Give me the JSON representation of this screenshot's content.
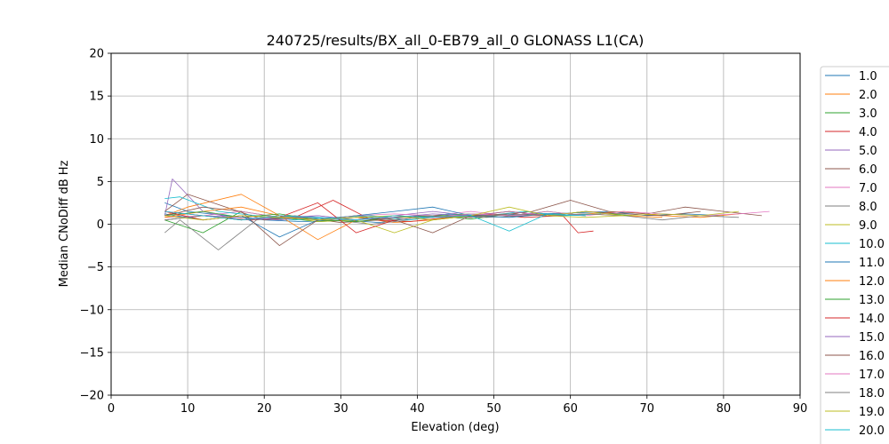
{
  "chart_data": {
    "type": "line",
    "title": "240725/results/BX_all_0-EB79_all_0 GLONASS L1(CA)",
    "xlabel": "Elevation (deg)",
    "ylabel": "Median CNoDiff dB Hz",
    "xlim": [
      0,
      90
    ],
    "ylim": [
      -20,
      20
    ],
    "xticks": [
      0,
      10,
      20,
      30,
      40,
      50,
      60,
      70,
      80,
      90
    ],
    "yticks": [
      -20,
      -15,
      -10,
      -5,
      0,
      5,
      10,
      15,
      20
    ],
    "grid": true,
    "legend_position": "right, outside plot",
    "series": [
      {
        "name": "1.0",
        "color": "#1f77b4",
        "x": [
          7,
          10,
          15,
          20,
          25,
          30,
          35,
          40,
          45,
          50,
          55,
          60,
          65,
          70,
          75,
          80
        ],
        "values": [
          2.5,
          1.5,
          1.0,
          0.5,
          0.3,
          0.5,
          0.2,
          0.8,
          1.0,
          1.0,
          1.2,
          1.3,
          1.5,
          1.0,
          1.2,
          1.0
        ]
      },
      {
        "name": "2.0",
        "color": "#ff7f0e",
        "x": [
          7,
          10,
          17,
          22,
          27,
          32,
          37,
          42,
          47,
          52,
          57,
          62,
          67,
          72,
          77,
          82
        ],
        "values": [
          1.0,
          2.0,
          3.5,
          1.0,
          0.5,
          0.8,
          0.2,
          0.5,
          1.0,
          1.5,
          1.0,
          1.2,
          1.5,
          1.0,
          0.8,
          1.2
        ]
      },
      {
        "name": "3.0",
        "color": "#2ca02c",
        "x": [
          7,
          12,
          17,
          22,
          27,
          32,
          37,
          42,
          47,
          52,
          57,
          62,
          68
        ],
        "values": [
          0.5,
          -1.0,
          1.5,
          0.8,
          0.3,
          0.5,
          0.8,
          1.0,
          0.6,
          1.2,
          1.0,
          1.5,
          1.0
        ]
      },
      {
        "name": "4.0",
        "color": "#d62728",
        "x": [
          7,
          12,
          18,
          24,
          29,
          34,
          39,
          44,
          49,
          54,
          59,
          61,
          63
        ],
        "values": [
          1.5,
          1.0,
          0.5,
          0.8,
          2.8,
          0.5,
          0.3,
          0.8,
          1.2,
          0.8,
          1.0,
          -1.0,
          -0.8
        ]
      },
      {
        "name": "5.0",
        "color": "#9467bd",
        "x": [
          7,
          8,
          12,
          17,
          22,
          27,
          32,
          37,
          42,
          47,
          52,
          57
        ],
        "values": [
          1.0,
          5.3,
          1.5,
          0.5,
          0.8,
          1.0,
          0.5,
          1.0,
          1.5,
          1.0,
          1.2,
          1.0
        ]
      },
      {
        "name": "6.0",
        "color": "#8c564b",
        "x": [
          7,
          10,
          15,
          20,
          25,
          30,
          35,
          40,
          45,
          50,
          55,
          60,
          65,
          70,
          75,
          80,
          85
        ],
        "values": [
          1.5,
          3.5,
          2.0,
          0.5,
          0.8,
          0.2,
          0.5,
          1.0,
          0.8,
          1.0,
          1.5,
          2.8,
          1.5,
          1.2,
          2.0,
          1.5,
          1.0
        ]
      },
      {
        "name": "7.0",
        "color": "#e377c2",
        "x": [
          7,
          12,
          17,
          22,
          27,
          32,
          37,
          42,
          47,
          52,
          57,
          62,
          67,
          72,
          77,
          82,
          86
        ],
        "values": [
          0.8,
          1.0,
          1.5,
          0.8,
          0.5,
          1.0,
          1.2,
          1.0,
          1.5,
          1.0,
          1.2,
          1.0,
          1.5,
          1.2,
          1.0,
          1.2,
          1.5
        ]
      },
      {
        "name": "8.0",
        "color": "#7f7f7f",
        "x": [
          7,
          9,
          14,
          19,
          24,
          29,
          34,
          39,
          44,
          49,
          54,
          59
        ],
        "values": [
          -1.0,
          0.5,
          -3.0,
          0.5,
          1.0,
          0.5,
          0.0,
          0.5,
          1.0,
          0.8,
          1.0,
          1.2
        ]
      },
      {
        "name": "9.0",
        "color": "#bcbd22",
        "x": [
          7,
          12,
          17,
          22,
          27,
          32,
          37,
          42,
          47,
          52,
          57,
          62,
          67
        ],
        "values": [
          0.5,
          1.0,
          0.5,
          1.0,
          0.3,
          0.5,
          -1.0,
          0.5,
          1.0,
          1.2,
          1.0,
          0.8,
          1.0
        ]
      },
      {
        "name": "10.0",
        "color": "#17becf",
        "x": [
          7,
          9,
          14,
          19,
          24,
          29,
          34,
          39,
          44,
          49,
          54,
          59,
          64
        ],
        "values": [
          3.0,
          3.2,
          1.5,
          1.0,
          0.5,
          0.8,
          1.0,
          0.5,
          1.2,
          1.0,
          1.5,
          1.0,
          1.2
        ]
      },
      {
        "name": "11.0",
        "color": "#1f77b4",
        "x": [
          7,
          12,
          17,
          22,
          27,
          32,
          37,
          42,
          47,
          52,
          57,
          62
        ],
        "values": [
          1.2,
          0.5,
          1.0,
          -1.5,
          0.5,
          1.0,
          1.5,
          2.0,
          1.0,
          0.8,
          1.2,
          1.0
        ]
      },
      {
        "name": "12.0",
        "color": "#ff7f0e",
        "x": [
          7,
          12,
          17,
          22,
          27,
          32,
          37,
          42,
          47,
          52,
          57,
          62,
          67,
          72
        ],
        "values": [
          0.8,
          1.5,
          2.0,
          1.0,
          -1.8,
          0.5,
          1.0,
          0.8,
          1.0,
          1.5,
          1.0,
          1.2,
          1.0,
          0.8
        ]
      },
      {
        "name": "13.0",
        "color": "#2ca02c",
        "x": [
          7,
          12,
          17,
          22,
          27,
          32,
          37,
          42,
          47,
          52,
          57,
          62
        ],
        "values": [
          1.0,
          1.5,
          0.8,
          1.2,
          0.5,
          0.3,
          0.8,
          1.0,
          1.2,
          1.0,
          1.5,
          1.0
        ]
      },
      {
        "name": "14.0",
        "color": "#d62728",
        "x": [
          7,
          12,
          17,
          22,
          27,
          32,
          37,
          42,
          47,
          52,
          57
        ],
        "values": [
          1.5,
          0.5,
          1.0,
          0.8,
          2.5,
          -1.0,
          0.5,
          1.0,
          0.8,
          1.2,
          1.0
        ]
      },
      {
        "name": "15.0",
        "color": "#9467bd",
        "x": [
          7,
          12,
          17,
          22,
          27,
          32,
          37,
          42,
          47,
          52,
          57,
          62
        ],
        "values": [
          0.5,
          1.0,
          0.8,
          0.5,
          1.0,
          0.5,
          0.8,
          1.2,
          1.0,
          1.5,
          1.0,
          1.2
        ]
      },
      {
        "name": "16.0",
        "color": "#8c564b",
        "x": [
          7,
          12,
          17,
          22,
          27,
          32,
          37,
          42,
          47,
          52,
          57,
          62,
          67,
          72,
          77
        ],
        "values": [
          1.0,
          2.0,
          1.5,
          -2.5,
          0.5,
          0.8,
          0.5,
          -1.0,
          1.0,
          1.2,
          1.0,
          1.5,
          1.2,
          1.0,
          1.5
        ]
      },
      {
        "name": "17.0",
        "color": "#e377c2",
        "x": [
          7,
          12,
          17,
          22,
          27,
          32,
          37,
          42,
          47,
          52,
          57,
          62
        ],
        "values": [
          1.5,
          1.0,
          0.5,
          1.0,
          0.8,
          0.5,
          1.0,
          0.8,
          1.2,
          1.0,
          1.5,
          1.0
        ]
      },
      {
        "name": "18.0",
        "color": "#7f7f7f",
        "x": [
          7,
          12,
          17,
          22,
          27,
          32,
          37,
          42,
          47,
          52,
          57,
          62,
          67,
          72,
          77,
          82
        ],
        "values": [
          0.5,
          1.0,
          0.5,
          1.0,
          0.5,
          1.0,
          0.5,
          1.0,
          0.8,
          1.2,
          1.0,
          1.2,
          1.0,
          0.5,
          1.0,
          0.8
        ]
      },
      {
        "name": "19.0",
        "color": "#bcbd22",
        "x": [
          7,
          12,
          17,
          22,
          27,
          32,
          37,
          42,
          47,
          52,
          57,
          62,
          67,
          72,
          77,
          82
        ],
        "values": [
          1.0,
          0.5,
          1.0,
          0.8,
          0.5,
          0.8,
          1.0,
          0.5,
          1.0,
          2.0,
          1.0,
          1.5,
          1.0,
          1.2,
          1.0,
          1.5
        ]
      },
      {
        "name": "20.0",
        "color": "#17becf",
        "x": [
          7,
          12,
          17,
          22,
          27,
          32,
          37,
          42,
          47,
          52,
          57,
          62
        ],
        "values": [
          1.5,
          1.0,
          0.5,
          1.0,
          0.8,
          0.5,
          1.0,
          0.8,
          1.0,
          -0.8,
          1.2,
          1.0
        ]
      }
    ]
  }
}
